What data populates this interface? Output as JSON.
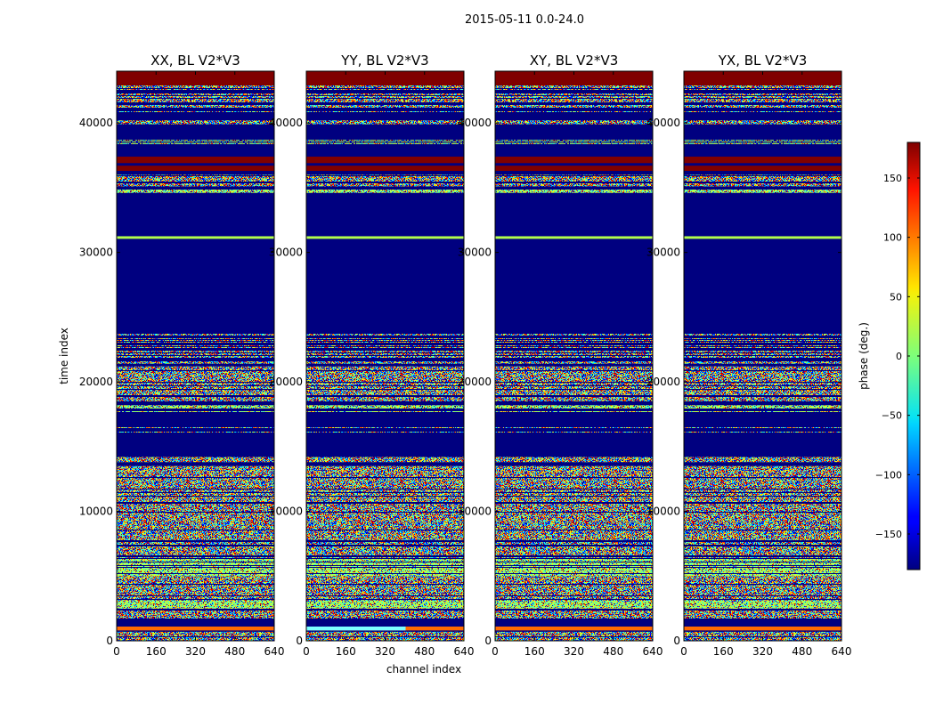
{
  "chart_data": {
    "type": "heatmap",
    "suptitle": "2015-05-11 0.0-24.0",
    "ylabel": "time index",
    "xlabel": "channel index",
    "xlim": [
      0,
      640
    ],
    "ylim": [
      0,
      44000
    ],
    "x_ticks": [
      0,
      160,
      320,
      480,
      640
    ],
    "y_ticks": [
      0,
      10000,
      20000,
      30000,
      40000
    ],
    "panels": [
      {
        "title": "XX, BL V2*V3",
        "ylabels_visible": true
      },
      {
        "title": "YY, BL V2*V3",
        "ylabels_visible": true
      },
      {
        "title": "XY, BL V2*V3",
        "ylabels_visible": true
      },
      {
        "title": "YX, BL V2*V3",
        "ylabels_visible": true
      }
    ],
    "colorbar": {
      "label": "phase (deg.)",
      "range": [
        -180,
        180
      ],
      "ticks": [
        -150,
        -100,
        -50,
        0,
        50,
        100,
        150
      ],
      "colormap": "jet"
    },
    "bands": [
      {
        "from": 42900,
        "to": 44000,
        "kind": "max"
      },
      {
        "from": 40600,
        "to": 42900,
        "kind": "noise-sparse"
      },
      {
        "from": 39900,
        "to": 40200,
        "kind": "noise"
      },
      {
        "from": 38300,
        "to": 38700,
        "kind": "noise-light"
      },
      {
        "from": 36900,
        "to": 37400,
        "kind": "max"
      },
      {
        "from": 36300,
        "to": 36700,
        "kind": "max"
      },
      {
        "from": 35100,
        "to": 36000,
        "kind": "noise"
      },
      {
        "from": 34600,
        "to": 34900,
        "kind": "noise-light"
      },
      {
        "from": 31050,
        "to": 31250,
        "kind": "zero-line"
      },
      {
        "from": 21400,
        "to": 23800,
        "kind": "noise-sparse"
      },
      {
        "from": 18500,
        "to": 21200,
        "kind": "noise"
      },
      {
        "from": 17500,
        "to": 18200,
        "kind": "noise-light"
      },
      {
        "from": 15800,
        "to": 16500,
        "kind": "noise-sparse"
      },
      {
        "from": 13800,
        "to": 14200,
        "kind": "noise"
      },
      {
        "from": 1700,
        "to": 13500,
        "kind": "noise"
      },
      {
        "from": 5000,
        "to": 6400,
        "kind": "green-stripes"
      },
      {
        "from": 2500,
        "to": 3100,
        "kind": "green-stripes"
      },
      {
        "from": 800,
        "to": 1100,
        "kind": "hot-strip"
      },
      {
        "from": 0,
        "to": 700,
        "kind": "noise"
      }
    ]
  }
}
